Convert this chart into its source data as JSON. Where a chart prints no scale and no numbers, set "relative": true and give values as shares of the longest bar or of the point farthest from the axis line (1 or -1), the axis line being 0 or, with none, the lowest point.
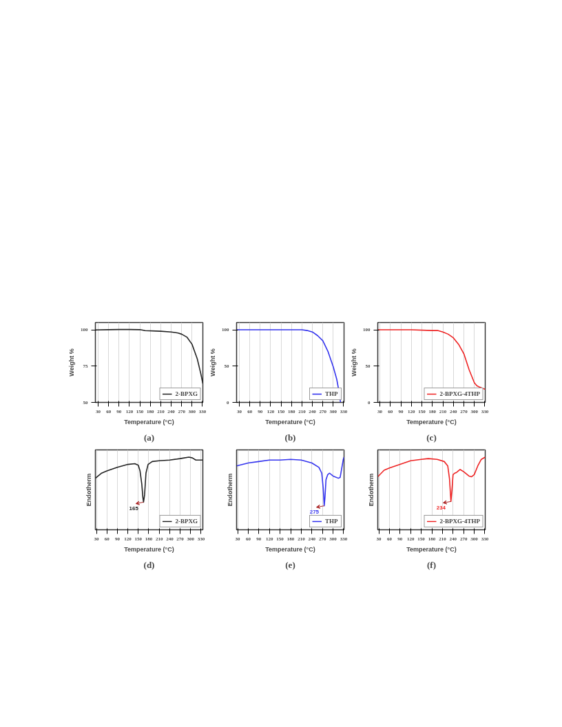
{
  "chart_data": [
    {
      "type": "line",
      "title": "(a)",
      "xlabel": "Temperature (°C)",
      "ylabel": "Weight %",
      "xlim": [
        22,
        331
      ],
      "xticks": [
        30,
        60,
        90,
        120,
        150,
        180,
        210,
        240,
        270,
        300,
        330
      ],
      "ylim": [
        50,
        105
      ],
      "yticks": [
        50,
        75,
        100
      ],
      "grid": "x",
      "legend": "bottom right",
      "x": [
        22,
        60,
        90,
        120,
        150,
        158,
        165,
        210,
        240,
        260,
        270,
        285,
        300,
        315,
        325,
        331
      ],
      "series": [
        {
          "name": "2-BPXG",
          "color": "#222222",
          "values": [
            99.9,
            100.1,
            100.2,
            100.2,
            100.1,
            99.8,
            99.4,
            99.0,
            98.5,
            97.8,
            97.0,
            95.0,
            90.0,
            80.0,
            70.0,
            63.0
          ]
        }
      ]
    },
    {
      "type": "line",
      "title": "(b)",
      "xlabel": "Temperature (°C)",
      "ylabel": "Weight %",
      "xlim": [
        22,
        331
      ],
      "xticks": [
        30,
        60,
        90,
        120,
        150,
        180,
        210,
        240,
        270,
        300,
        330
      ],
      "ylim": [
        0,
        110
      ],
      "yticks": [
        0,
        50,
        100
      ],
      "grid": "x",
      "legend": "bottom right",
      "x": [
        22,
        60,
        120,
        180,
        210,
        225,
        240,
        255,
        270,
        285,
        300,
        310,
        315,
        321
      ],
      "series": [
        {
          "name": "THP",
          "color": "#3333ee",
          "values": [
            100,
            100,
            100,
            100,
            100,
            99,
            97,
            92,
            85,
            70,
            49,
            32,
            19,
            0
          ]
        }
      ]
    },
    {
      "type": "line",
      "title": "(c)",
      "xlabel": "Temperature (°C)",
      "ylabel": "Weight %",
      "xlim": [
        24,
        331
      ],
      "xticks": [
        30,
        60,
        90,
        120,
        150,
        180,
        210,
        240,
        270,
        300,
        330
      ],
      "ylim": [
        0,
        110
      ],
      "yticks": [
        0,
        50,
        100
      ],
      "grid": "x",
      "legend": "bottom right",
      "x": [
        24,
        60,
        120,
        180,
        195,
        210,
        225,
        240,
        255,
        270,
        285,
        300,
        307,
        315,
        331
      ],
      "series": [
        {
          "name": "2-BPXG-4THP",
          "color": "#ee2222",
          "values": [
            100,
            100,
            100,
            99,
            99,
            97,
            94,
            89,
            80,
            67,
            45,
            27,
            23,
            21,
            18
          ]
        }
      ]
    },
    {
      "type": "line",
      "title": "(d)",
      "xlabel": "Temperature (°C)",
      "ylabel": "Endotherm",
      "relative": true,
      "xlim": [
        27,
        335
      ],
      "xticks": [
        30,
        60,
        90,
        120,
        150,
        180,
        210,
        240,
        270,
        300,
        330
      ],
      "grid": "x",
      "legend": "bottom right",
      "annotations": [
        {
          "text": "165",
          "x": 165,
          "y": 0.38
        }
      ],
      "x": [
        27,
        45,
        60,
        90,
        120,
        140,
        150,
        155,
        160,
        163,
        165,
        168,
        172,
        178,
        190,
        210,
        240,
        270,
        295,
        305,
        315,
        325,
        335
      ],
      "series": [
        {
          "name": "2-BPXG",
          "color": "#222222",
          "values": [
            0.71,
            0.78,
            0.81,
            0.86,
            0.9,
            0.91,
            0.89,
            0.81,
            0.63,
            0.45,
            0.38,
            0.48,
            0.78,
            0.9,
            0.94,
            0.95,
            0.96,
            0.98,
            1,
            0.99,
            0.96,
            0.96,
            0.96
          ]
        }
      ]
    },
    {
      "type": "line",
      "title": "(e)",
      "xlabel": "Temperature (°C)",
      "ylabel": "Endotherm",
      "relative": true,
      "xlim": [
        27,
        331
      ],
      "xticks": [
        30,
        60,
        90,
        120,
        150,
        180,
        210,
        240,
        270,
        300,
        330
      ],
      "grid": "x",
      "legend": "bottom right",
      "annotations": [
        {
          "text": "275",
          "x": 275,
          "y": 0.33
        }
      ],
      "x": [
        27,
        60,
        90,
        120,
        150,
        180,
        210,
        240,
        260,
        268,
        272,
        275,
        277,
        280,
        285,
        290,
        300,
        315,
        320,
        325,
        329,
        331
      ],
      "series": [
        {
          "name": "THP",
          "color": "#3333ee",
          "values": [
            0.88,
            0.92,
            0.94,
            0.96,
            0.96,
            0.97,
            0.96,
            0.92,
            0.86,
            0.78,
            0.58,
            0.33,
            0.44,
            0.69,
            0.76,
            0.78,
            0.74,
            0.71,
            0.72,
            0.86,
            0.97,
            1
          ]
        }
      ]
    },
    {
      "type": "line",
      "title": "(f)",
      "xlabel": "Temperature (°C)",
      "ylabel": "Endotherm",
      "relative": true,
      "xlim": [
        27,
        331
      ],
      "xticks": [
        30,
        60,
        90,
        120,
        150,
        180,
        210,
        240,
        270,
        300,
        330
      ],
      "grid": "x",
      "legend": "bottom right",
      "annotations": [
        {
          "text": "234",
          "x": 234,
          "y": 0.39
        }
      ],
      "x": [
        27,
        45,
        60,
        90,
        120,
        150,
        170,
        195,
        215,
        225,
        230,
        234,
        237,
        240,
        245,
        250,
        260,
        270,
        285,
        292,
        300,
        310,
        320,
        331
      ],
      "series": [
        {
          "name": "2-BPXG-4THP",
          "color": "#ee2222",
          "values": [
            0.73,
            0.82,
            0.85,
            0.9,
            0.95,
            0.97,
            0.98,
            0.97,
            0.94,
            0.88,
            0.7,
            0.39,
            0.55,
            0.76,
            0.78,
            0.79,
            0.83,
            0.8,
            0.74,
            0.73,
            0.76,
            0.88,
            0.97,
            1
          ]
        }
      ]
    }
  ]
}
